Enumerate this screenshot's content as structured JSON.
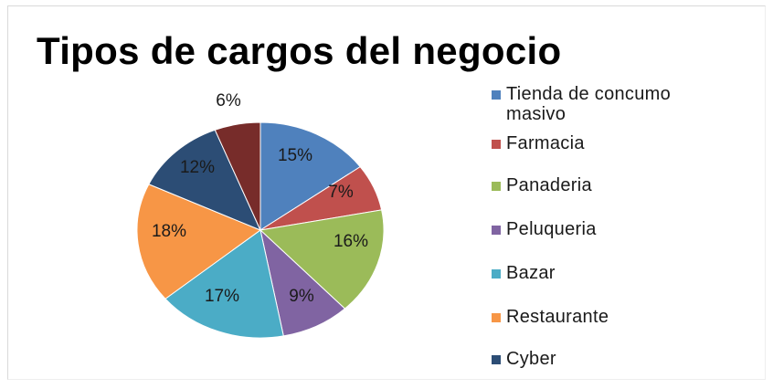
{
  "chart_data": {
    "type": "pie",
    "title": "Tipos de cargos del negocio",
    "slices": [
      {
        "label": "Tienda de concumo masivo",
        "value": 15,
        "display": "15%",
        "color": "#4f81bd"
      },
      {
        "label": "Farmacia",
        "value": 7,
        "display": "7%",
        "color": "#c0504d"
      },
      {
        "label": "Panaderia",
        "value": 16,
        "display": "16%",
        "color": "#9bbb59"
      },
      {
        "label": "Peluqueria",
        "value": 9,
        "display": "9%",
        "color": "#8064a2"
      },
      {
        "label": "Bazar",
        "value": 17,
        "display": "17%",
        "color": "#4bacc6"
      },
      {
        "label": "Restaurante",
        "value": 18,
        "display": "18%",
        "color": "#f79646"
      },
      {
        "label": "Cyber",
        "value": 12,
        "display": "12%",
        "color": "#2c4d75"
      },
      {
        "label": "",
        "value": 6,
        "display": "6%",
        "color": "#772c2a"
      }
    ],
    "legend_position": "right"
  }
}
